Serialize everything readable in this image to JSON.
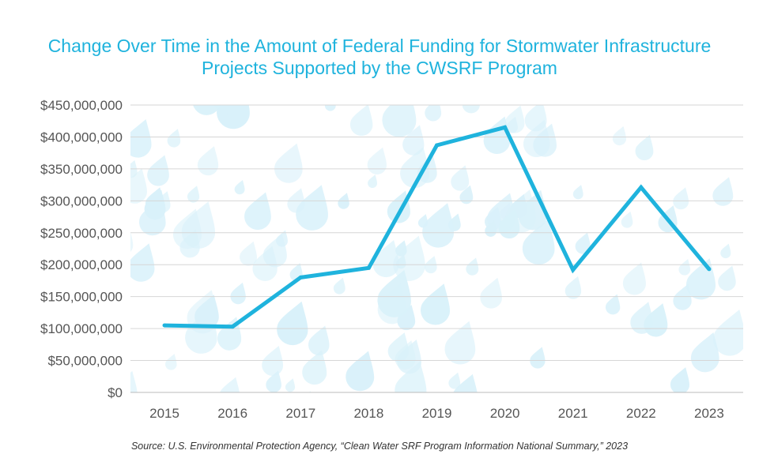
{
  "chart_data": {
    "type": "line",
    "title": [
      "Change Over Time in the Amount of Federal Funding for Stormwater Infrastructure",
      "Projects Supported by the CWSRF Program"
    ],
    "xlabel": "",
    "ylabel": "",
    "x": [
      "2015",
      "2016",
      "2017",
      "2018",
      "2019",
      "2020",
      "2021",
      "2022",
      "2023"
    ],
    "series": [
      {
        "values": [
          105000000,
          103000000,
          180000000,
          195000000,
          387000000,
          415000000,
          192000000,
          321000000,
          193000000
        ]
      }
    ],
    "ylim": [
      0,
      450000000
    ],
    "yticks": [
      "$0",
      "$50,000,000",
      "$100,000,000",
      "$150,000,000",
      "$200,000,000",
      "$250,000,000",
      "$300,000,000",
      "$350,000,000",
      "$400,000,000",
      "$450,000,000"
    ],
    "grid": true,
    "line_color": "#1fb3dd",
    "background_pattern": "raindrops",
    "source": "Source: U.S. Environmental Protection Agency, “Clean Water SRF Program Information National Summary,” 2023"
  }
}
